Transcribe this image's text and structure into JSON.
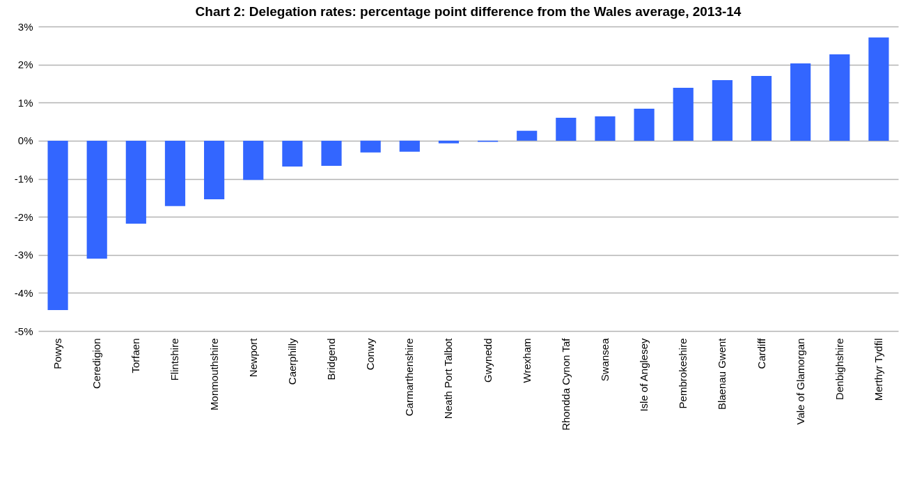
{
  "chart_data": {
    "type": "bar",
    "title": "Chart 2: Delegation rates: percentage point difference from the Wales average, 2013-14",
    "categories": [
      "Powys",
      "Ceredigion",
      "Torfaen",
      "Flintshire",
      "Monmouthshire",
      "Newport",
      "Caerphilly",
      "Bridgend",
      "Conwy",
      "Carmarthenshire",
      "Neath Port Talbot",
      "Gwynedd",
      "Wrexham",
      "Rhondda Cynon Taf",
      "Swansea",
      "Isle of Anglesey",
      "Pembrokeshire",
      "Blaenau Gwent",
      "Cardiff",
      "Vale of Glamorgan",
      "Denbighshire",
      "Merthyr Tydfil"
    ],
    "values": [
      -4.45,
      -3.1,
      -2.18,
      -1.72,
      -1.54,
      -1.03,
      -0.68,
      -0.66,
      -0.31,
      -0.29,
      -0.07,
      -0.03,
      0.26,
      0.6,
      0.64,
      0.84,
      1.39,
      1.59,
      1.7,
      2.03,
      2.27,
      2.71
    ],
    "color": "#3366ff",
    "ylim": [
      -5,
      3
    ],
    "yticks": [
      {
        "value": -5,
        "label": "-5%"
      },
      {
        "value": -4,
        "label": "-4%"
      },
      {
        "value": -3,
        "label": "-3%"
      },
      {
        "value": -2,
        "label": "-2%"
      },
      {
        "value": -1,
        "label": "-1%"
      },
      {
        "value": 0,
        "label": "0%"
      },
      {
        "value": 1,
        "label": "1%"
      },
      {
        "value": 2,
        "label": "2%"
      },
      {
        "value": 3,
        "label": "3%"
      }
    ],
    "grid": "y"
  }
}
